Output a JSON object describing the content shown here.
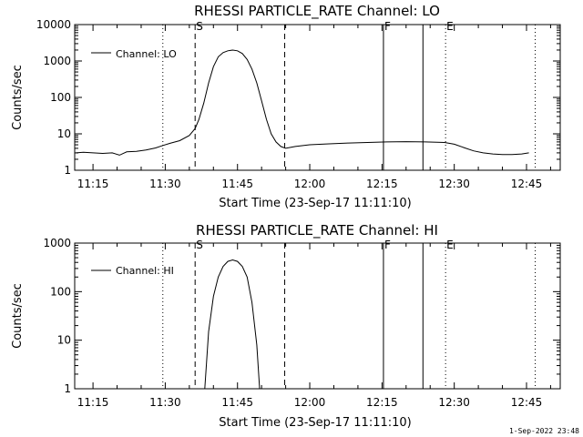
{
  "chart_data": [
    {
      "type": "line",
      "title": "RHESSI PARTICLE_RATE Channel: LO",
      "xlabel": "Start Time (23-Sep-17 11:11:10)",
      "ylabel": "Counts/sec",
      "yscale": "log",
      "ylim": [
        1,
        10000
      ],
      "xlim_min": [
        671.2,
        772
      ],
      "x_tick_labels": [
        "11:15",
        "11:30",
        "11:45",
        "12:00",
        "12:15",
        "12:30",
        "12:45"
      ],
      "x_tick_values": [
        675,
        690,
        705,
        720,
        735,
        750,
        765
      ],
      "y_tick_labels": [
        "1",
        "10",
        "100",
        "1000",
        "10000"
      ],
      "y_tick_values": [
        1,
        10,
        100,
        1000,
        10000
      ],
      "legend": "Channel: LO",
      "legend_position": "top-left",
      "markers": [
        {
          "x": 689.5,
          "style": "dotted",
          "label": ""
        },
        {
          "x": 696.2,
          "style": "dashed",
          "label": "S"
        },
        {
          "x": 714.8,
          "style": "dashed",
          "label": ""
        },
        {
          "x": 735.3,
          "style": "solid",
          "label": "F"
        },
        {
          "x": 743.5,
          "style": "solid",
          "label": ""
        },
        {
          "x": 748.2,
          "style": "dotted",
          "label": "E"
        },
        {
          "x": 766.8,
          "style": "dotted",
          "label": ""
        }
      ],
      "series": [
        {
          "x": [
            671.5,
            673,
            675,
            677,
            679,
            680.5,
            682,
            684,
            686,
            688,
            689.5,
            691,
            693,
            695,
            696.2,
            697,
            698,
            699,
            700,
            701,
            702,
            703,
            704,
            705,
            706,
            707,
            708,
            709,
            710,
            711,
            712,
            713,
            714,
            715,
            717,
            720,
            724,
            728,
            732,
            736,
            740,
            744,
            748,
            750,
            752,
            754,
            756,
            758,
            760,
            762,
            764,
            765.5
          ],
          "y": [
            3,
            3.1,
            3,
            2.9,
            3,
            2.6,
            3.2,
            3.3,
            3.6,
            4.1,
            4.8,
            5.5,
            6.5,
            9,
            14,
            25,
            70,
            250,
            700,
            1300,
            1700,
            1900,
            2000,
            1900,
            1600,
            1100,
            600,
            250,
            80,
            25,
            10,
            6,
            4.5,
            4,
            4.5,
            5,
            5.3,
            5.6,
            5.8,
            6,
            6.1,
            6,
            5.8,
            5.2,
            4.2,
            3.4,
            3,
            2.8,
            2.7,
            2.7,
            2.8,
            3
          ]
        }
      ]
    },
    {
      "type": "line",
      "title": "RHESSI PARTICLE_RATE Channel: HI",
      "xlabel": "Start Time (23-Sep-17 11:11:10)",
      "ylabel": "Counts/sec",
      "yscale": "log",
      "ylim": [
        1,
        1000
      ],
      "xlim_min": [
        671.2,
        772
      ],
      "x_tick_labels": [
        "11:15",
        "11:30",
        "11:45",
        "12:00",
        "12:15",
        "12:30",
        "12:45"
      ],
      "x_tick_values": [
        675,
        690,
        705,
        720,
        735,
        750,
        765
      ],
      "y_tick_labels": [
        "1",
        "10",
        "100",
        "1000"
      ],
      "y_tick_values": [
        1,
        10,
        100,
        1000
      ],
      "legend": "Channel: HI",
      "legend_position": "top-left",
      "markers": [
        {
          "x": 689.5,
          "style": "dotted",
          "label": ""
        },
        {
          "x": 696.2,
          "style": "dashed",
          "label": "S"
        },
        {
          "x": 714.8,
          "style": "dashed",
          "label": ""
        },
        {
          "x": 735.3,
          "style": "solid",
          "label": "F"
        },
        {
          "x": 743.5,
          "style": "solid",
          "label": ""
        },
        {
          "x": 748.2,
          "style": "dotted",
          "label": "E"
        },
        {
          "x": 766.8,
          "style": "dotted",
          "label": ""
        }
      ],
      "series": [
        {
          "x": [
            698.2,
            699,
            700,
            701,
            702,
            703,
            704,
            705,
            706,
            707,
            708,
            709,
            709.6
          ],
          "y": [
            1,
            15,
            80,
            200,
            330,
            420,
            450,
            420,
            330,
            200,
            60,
            8,
            1
          ]
        }
      ]
    }
  ],
  "footer_date": "1-Sep-2022 23:48"
}
